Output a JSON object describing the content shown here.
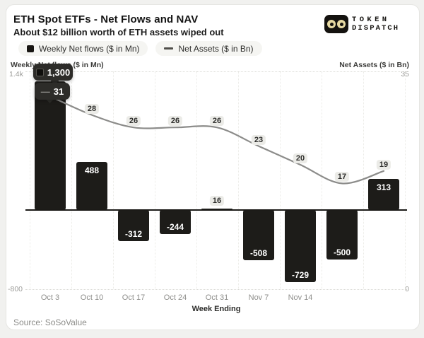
{
  "header": {
    "title": "ETH Spot ETFs - Net Flows and NAV",
    "subtitle": "About $12 billion worth of ETH assets wiped out",
    "logo": {
      "line1": "TOKEN",
      "line2": "DISPATCH"
    }
  },
  "legend": [
    {
      "label": "Weekly Net flows ($ in Mn)",
      "marker": "square"
    },
    {
      "label": "Net Assets ($ in Bn)",
      "marker": "dash"
    }
  ],
  "chart_data": {
    "type": "bar+line combo, dual axis",
    "categories": [
      "Oct 3",
      "Oct 10",
      "Oct 17",
      "Oct 24",
      "Oct 31",
      "Nov 7",
      "Nov 14",
      "",
      ""
    ],
    "x_axis_title": "Week Ending",
    "series": [
      {
        "name": "Weekly Net flows ($ in Mn)",
        "type": "bar",
        "axis": "left",
        "values": [
          1300,
          488,
          -312,
          -244,
          16,
          -508,
          -729,
          -500,
          313
        ],
        "labels": [
          "",
          "488",
          "-312",
          "-244",
          "16",
          "-508",
          "-729",
          "-500",
          "313"
        ]
      },
      {
        "name": "Net Assets ($ in Bn)",
        "type": "line",
        "axis": "right",
        "values": [
          31,
          28,
          26,
          26,
          26,
          23,
          20,
          17,
          19
        ],
        "labels": [
          "",
          "28",
          "26",
          "26",
          "26",
          "23",
          "20",
          "17",
          "19"
        ]
      }
    ],
    "left_axis": {
      "title": "Weekly Net flows ($ in Mn)",
      "max": 1400,
      "min": -800,
      "max_label": "1.4k",
      "min_label": "-800"
    },
    "right_axis": {
      "title": "Net Assets ($ in Bn)",
      "max": 35,
      "min": 0,
      "max_label": "35",
      "min_label": "0"
    },
    "grid": "dotted horizontal lines at axis extremes, faint dotted column separators",
    "legend_position": "top-left",
    "hovered_point": {
      "category": "Oct 3",
      "bar_value_label": "1,300",
      "line_value_label": "31"
    }
  },
  "tooltip": {
    "bar_value": "1,300",
    "line_dash": "—",
    "line_value": "31"
  },
  "footer": {
    "source": "Source: SoSoValue"
  },
  "colors": {
    "bar": "#1d1c19",
    "line": "#8c8c8a",
    "tooltip_bg": "#2d2c29",
    "label_pill_bg": "#ebebe7",
    "card_bg": "#ffffff",
    "page_bg": "#f1f1ef",
    "logo_eye": "#e7daa3"
  }
}
